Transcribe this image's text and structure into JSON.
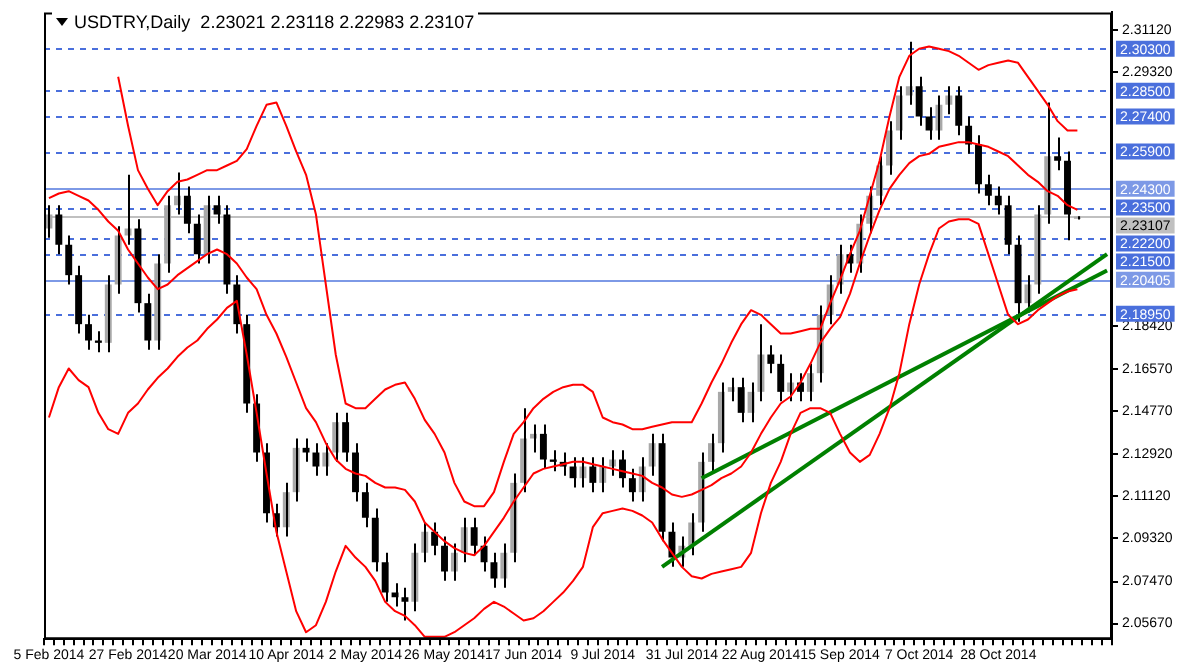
{
  "chart_data": {
    "type": "candlestick",
    "title": "USDTRY,Daily  2.23021 2.23118 2.22983 2.23107",
    "categories": [
      "5 Feb 2014",
      null,
      null,
      null,
      null,
      null,
      null,
      null,
      "27 Feb 2014",
      null,
      null,
      null,
      null,
      null,
      null,
      null,
      "20 Mar 2014",
      null,
      null,
      null,
      null,
      null,
      null,
      null,
      "10 Apr 2014",
      null,
      null,
      null,
      null,
      null,
      null,
      null,
      "2 May 2014",
      null,
      null,
      null,
      null,
      null,
      null,
      null,
      "26 May 2014",
      null,
      null,
      null,
      null,
      null,
      null,
      null,
      "17 Jun 2014",
      null,
      null,
      null,
      null,
      null,
      null,
      null,
      "9 Jul 2014",
      null,
      null,
      null,
      null,
      null,
      null,
      null,
      "31 Jul 2014",
      null,
      null,
      null,
      null,
      null,
      null,
      null,
      "22 Aug 2014",
      null,
      null,
      null,
      null,
      null,
      null,
      null,
      "15 Sep 2014",
      null,
      null,
      null,
      null,
      null,
      null,
      null,
      "7 Oct 2014",
      null,
      null,
      null,
      null,
      null,
      null,
      null,
      "28 Oct 2014",
      null,
      null,
      null,
      null,
      null,
      null,
      null,
      null,
      null,
      null,
      null
    ],
    "ohlc": [
      [
        2.226,
        2.236,
        2.222,
        2.232
      ],
      [
        2.232,
        2.236,
        2.215,
        2.219
      ],
      [
        2.219,
        2.223,
        2.202,
        2.206
      ],
      [
        2.206,
        2.21,
        2.181,
        2.185
      ],
      [
        2.185,
        2.189,
        2.174,
        2.178
      ],
      [
        2.178,
        2.182,
        2.173,
        2.177
      ],
      [
        2.177,
        2.206,
        2.173,
        2.202
      ],
      [
        2.202,
        2.227,
        2.198,
        2.223
      ],
      [
        2.223,
        2.249,
        2.219,
        2.226
      ],
      [
        2.226,
        2.23,
        2.19,
        2.194
      ],
      [
        2.194,
        2.198,
        2.174,
        2.178
      ],
      [
        2.178,
        2.215,
        2.174,
        2.211
      ],
      [
        2.211,
        2.24,
        2.207,
        2.236
      ],
      [
        2.236,
        2.25,
        2.232,
        2.24
      ],
      [
        2.24,
        2.244,
        2.224,
        2.228
      ],
      [
        2.228,
        2.232,
        2.211,
        2.215
      ],
      [
        2.215,
        2.24,
        2.211,
        2.236
      ],
      [
        2.236,
        2.24,
        2.228,
        2.232
      ],
      [
        2.232,
        2.236,
        2.198,
        2.202
      ],
      [
        2.202,
        2.206,
        2.181,
        2.185
      ],
      [
        2.185,
        2.189,
        2.147,
        2.151
      ],
      [
        2.151,
        2.155,
        2.126,
        2.13
      ],
      [
        2.13,
        2.134,
        2.1,
        2.104
      ],
      [
        2.104,
        2.108,
        2.094,
        2.098
      ],
      [
        2.098,
        2.117,
        2.094,
        2.113
      ],
      [
        2.113,
        2.136,
        2.109,
        2.132
      ],
      [
        2.132,
        2.136,
        2.126,
        2.13
      ],
      [
        2.13,
        2.134,
        2.12,
        2.124
      ],
      [
        2.124,
        2.134,
        2.12,
        2.13
      ],
      [
        2.13,
        2.147,
        2.126,
        2.143
      ],
      [
        2.143,
        2.147,
        2.126,
        2.13
      ],
      [
        2.13,
        2.134,
        2.109,
        2.113
      ],
      [
        2.113,
        2.117,
        2.098,
        2.102
      ],
      [
        2.102,
        2.106,
        2.079,
        2.083
      ],
      [
        2.083,
        2.087,
        2.066,
        2.07
      ],
      [
        2.07,
        2.074,
        2.064,
        2.068
      ],
      [
        2.068,
        2.072,
        2.058,
        2.066
      ],
      [
        2.066,
        2.091,
        2.062,
        2.087
      ],
      [
        2.087,
        2.1,
        2.083,
        2.096
      ],
      [
        2.096,
        2.1,
        2.086,
        2.09
      ],
      [
        2.09,
        2.094,
        2.075,
        2.079
      ],
      [
        2.079,
        2.091,
        2.075,
        2.087
      ],
      [
        2.087,
        2.102,
        2.083,
        2.098
      ],
      [
        2.098,
        2.102,
        2.086,
        2.09
      ],
      [
        2.09,
        2.094,
        2.079,
        2.083
      ],
      [
        2.083,
        2.087,
        2.072,
        2.076
      ],
      [
        2.076,
        2.091,
        2.072,
        2.087
      ],
      [
        2.087,
        2.121,
        2.083,
        2.117
      ],
      [
        2.117,
        2.149,
        2.113,
        2.136
      ],
      [
        2.136,
        2.142,
        2.13,
        2.138
      ],
      [
        2.138,
        2.142,
        2.123,
        2.127
      ],
      [
        2.127,
        2.131,
        2.122,
        2.126
      ],
      [
        2.126,
        2.13,
        2.12,
        2.124
      ],
      [
        2.124,
        2.128,
        2.115,
        2.119
      ],
      [
        2.119,
        2.128,
        2.115,
        2.124
      ],
      [
        2.124,
        2.128,
        2.113,
        2.117
      ],
      [
        2.117,
        2.128,
        2.113,
        2.124
      ],
      [
        2.124,
        2.131,
        2.12,
        2.127
      ],
      [
        2.127,
        2.131,
        2.115,
        2.119
      ],
      [
        2.119,
        2.123,
        2.109,
        2.113
      ],
      [
        2.113,
        2.128,
        2.109,
        2.124
      ],
      [
        2.124,
        2.138,
        2.12,
        2.134
      ],
      [
        2.134,
        2.138,
        2.092,
        2.096
      ],
      [
        2.096,
        2.1,
        2.081,
        2.085
      ],
      [
        2.085,
        2.094,
        2.081,
        2.09
      ],
      [
        2.09,
        2.104,
        2.086,
        2.1
      ],
      [
        2.1,
        2.13,
        2.096,
        2.126
      ],
      [
        2.126,
        2.138,
        2.122,
        2.134
      ],
      [
        2.134,
        2.16,
        2.13,
        2.156
      ],
      [
        2.156,
        2.162,
        2.152,
        2.158
      ],
      [
        2.158,
        2.162,
        2.143,
        2.147
      ],
      [
        2.147,
        2.16,
        2.143,
        2.156
      ],
      [
        2.156,
        2.185,
        2.152,
        2.172
      ],
      [
        2.172,
        2.176,
        2.164,
        2.168
      ],
      [
        2.168,
        2.172,
        2.152,
        2.156
      ],
      [
        2.156,
        2.164,
        2.152,
        2.16
      ],
      [
        2.16,
        2.164,
        2.152,
        2.156
      ],
      [
        2.156,
        2.168,
        2.152,
        2.164
      ],
      [
        2.164,
        2.193,
        2.16,
        2.189
      ],
      [
        2.189,
        2.206,
        2.185,
        2.202
      ],
      [
        2.202,
        2.219,
        2.198,
        2.215
      ],
      [
        2.215,
        2.219,
        2.207,
        2.211
      ],
      [
        2.211,
        2.232,
        2.207,
        2.228
      ],
      [
        2.228,
        2.244,
        2.224,
        2.24
      ],
      [
        2.24,
        2.257,
        2.236,
        2.253
      ],
      [
        2.253,
        2.272,
        2.249,
        2.268
      ],
      [
        2.268,
        2.287,
        2.264,
        2.283
      ],
      [
        2.283,
        2.306,
        2.279,
        2.287
      ],
      [
        2.287,
        2.291,
        2.27,
        2.274
      ],
      [
        2.274,
        2.278,
        2.264,
        2.268
      ],
      [
        2.268,
        2.283,
        2.264,
        2.279
      ],
      [
        2.279,
        2.287,
        2.275,
        2.283
      ],
      [
        2.283,
        2.287,
        2.266,
        2.27
      ],
      [
        2.27,
        2.274,
        2.258,
        2.262
      ],
      [
        2.262,
        2.266,
        2.241,
        2.245
      ],
      [
        2.245,
        2.249,
        2.236,
        2.24
      ],
      [
        2.24,
        2.244,
        2.232,
        2.236
      ],
      [
        2.236,
        2.24,
        2.215,
        2.219
      ],
      [
        2.219,
        2.223,
        2.186,
        2.194
      ],
      [
        2.194,
        2.206,
        2.19,
        2.202
      ],
      [
        2.202,
        2.236,
        2.198,
        2.232
      ],
      [
        2.232,
        2.28,
        2.228,
        2.257
      ],
      [
        2.257,
        2.265,
        2.251,
        2.255
      ],
      [
        2.255,
        2.259,
        2.221,
        2.232
      ],
      [
        2.2302,
        2.2312,
        2.2298,
        2.2311
      ],
      null,
      null,
      null
    ],
    "series": [
      {
        "type": "line",
        "color": "#ff0000",
        "values": [
          null,
          null,
          null,
          null,
          null,
          null,
          null,
          2.291,
          2.27,
          2.251,
          2.243,
          2.236,
          2.242,
          2.246,
          2.247,
          2.249,
          2.251,
          2.251,
          2.253,
          2.255,
          2.26,
          2.27,
          2.279,
          2.28,
          2.27,
          2.259,
          2.249,
          2.232,
          2.202,
          2.172,
          2.151,
          2.149,
          2.149,
          2.153,
          2.157,
          2.159,
          2.16,
          2.153,
          2.144,
          2.138,
          2.13,
          2.117,
          2.109,
          2.107,
          2.107,
          2.113,
          2.126,
          2.138,
          2.143,
          2.149,
          2.153,
          2.156,
          2.158,
          2.159,
          2.159,
          2.156,
          2.145,
          2.143,
          2.142,
          2.14,
          2.14,
          2.141,
          2.142,
          2.143,
          2.143,
          2.143,
          2.151,
          2.16,
          2.168,
          2.177,
          2.185,
          2.191,
          2.189,
          2.185,
          2.181,
          2.181,
          2.182,
          2.183,
          2.183,
          2.194,
          2.204,
          2.215,
          2.225,
          2.24,
          2.255,
          2.274,
          2.291,
          2.3,
          2.303,
          2.304,
          2.303,
          2.302,
          2.3,
          2.297,
          2.294,
          2.296,
          2.297,
          2.298,
          2.297,
          2.291,
          2.285,
          2.279,
          2.272,
          2.268,
          2.268,
          null,
          null,
          null
        ]
      },
      {
        "type": "line",
        "color": "#ff0000",
        "values": [
          2.239,
          2.241,
          2.242,
          2.24,
          2.238,
          2.234,
          2.229,
          2.225,
          2.217,
          2.211,
          2.205,
          2.2,
          2.202,
          2.206,
          2.209,
          2.212,
          2.215,
          2.217,
          2.215,
          2.211,
          2.205,
          2.2,
          2.189,
          2.181,
          2.171,
          2.16,
          2.149,
          2.143,
          2.134,
          2.127,
          2.123,
          2.121,
          2.12,
          2.117,
          2.115,
          2.115,
          2.114,
          2.109,
          2.1,
          2.096,
          2.092,
          2.089,
          2.087,
          2.086,
          2.09,
          2.096,
          2.102,
          2.109,
          2.115,
          2.121,
          2.123,
          2.124,
          2.125,
          2.126,
          2.126,
          2.125,
          2.124,
          2.123,
          2.122,
          2.121,
          2.12,
          2.117,
          2.115,
          2.112,
          2.111,
          2.112,
          2.114,
          2.116,
          2.119,
          2.121,
          2.124,
          2.13,
          2.138,
          2.145,
          2.151,
          2.154,
          2.16,
          2.168,
          2.177,
          2.183,
          2.188,
          2.198,
          2.211,
          2.223,
          2.234,
          2.243,
          2.249,
          2.254,
          2.257,
          2.258,
          2.261,
          2.262,
          2.263,
          2.263,
          2.262,
          2.261,
          2.259,
          2.257,
          2.253,
          2.249,
          2.246,
          2.242,
          2.24,
          2.236,
          2.234,
          null,
          null,
          null
        ]
      },
      {
        "type": "line",
        "color": "#ff0000",
        "values": [
          2.145,
          2.158,
          2.166,
          2.161,
          2.158,
          2.147,
          2.14,
          2.138,
          2.147,
          2.151,
          2.157,
          2.162,
          2.166,
          2.171,
          2.175,
          2.178,
          2.183,
          2.187,
          2.192,
          2.195,
          2.172,
          2.147,
          2.121,
          2.096,
          2.079,
          2.062,
          2.053,
          2.056,
          2.066,
          2.079,
          2.09,
          2.085,
          2.081,
          2.075,
          2.066,
          2.062,
          2.06,
          2.056,
          2.051,
          2.051,
          2.051,
          2.053,
          2.056,
          2.059,
          2.063,
          2.066,
          2.064,
          2.061,
          2.058,
          2.059,
          2.062,
          2.066,
          2.07,
          2.075,
          2.081,
          2.098,
          2.104,
          2.105,
          2.106,
          2.105,
          2.103,
          2.1,
          2.093,
          2.087,
          2.081,
          2.077,
          2.076,
          2.078,
          2.079,
          2.08,
          2.081,
          2.087,
          2.104,
          2.117,
          2.126,
          2.138,
          2.147,
          2.149,
          2.149,
          2.147,
          2.138,
          2.13,
          2.126,
          2.129,
          2.138,
          2.149,
          2.164,
          2.185,
          2.202,
          2.215,
          2.226,
          2.229,
          2.23,
          2.23,
          2.228,
          2.215,
          2.202,
          2.189,
          2.185,
          2.187,
          2.191,
          2.194,
          2.197,
          2.199,
          2.2,
          null,
          null,
          null
        ]
      },
      {
        "type": "line",
        "color": "#008000",
        "values": [
          null,
          null,
          null,
          null,
          null,
          null,
          null,
          null,
          null,
          null,
          null,
          null,
          null,
          null,
          null,
          null,
          null,
          null,
          null,
          null,
          null,
          null,
          null,
          null,
          null,
          null,
          null,
          null,
          null,
          null,
          null,
          null,
          null,
          null,
          null,
          null,
          null,
          null,
          null,
          null,
          null,
          null,
          null,
          null,
          null,
          null,
          null,
          null,
          null,
          null,
          null,
          null,
          null,
          null,
          null,
          null,
          null,
          null,
          null,
          null,
          null,
          null,
          2.081,
          null,
          null,
          null,
          null,
          null,
          null,
          null,
          null,
          null,
          null,
          null,
          null,
          null,
          null,
          null,
          null,
          null,
          null,
          null,
          null,
          null,
          null,
          null,
          null,
          null,
          null,
          null,
          null,
          null,
          null,
          null,
          null,
          null,
          null,
          null,
          null,
          null,
          null,
          null,
          null,
          null,
          null,
          null,
          null,
          2.215
        ]
      },
      {
        "type": "line",
        "color": "#008000",
        "values": [
          null,
          null,
          null,
          null,
          null,
          null,
          null,
          null,
          null,
          null,
          null,
          null,
          null,
          null,
          null,
          null,
          null,
          null,
          null,
          null,
          null,
          null,
          null,
          null,
          null,
          null,
          null,
          null,
          null,
          null,
          null,
          null,
          null,
          null,
          null,
          null,
          null,
          null,
          null,
          null,
          null,
          null,
          null,
          null,
          null,
          null,
          null,
          null,
          null,
          null,
          null,
          null,
          null,
          null,
          null,
          null,
          null,
          null,
          null,
          null,
          null,
          null,
          null,
          null,
          null,
          null,
          2.119,
          null,
          null,
          null,
          null,
          null,
          null,
          null,
          null,
          null,
          null,
          null,
          null,
          null,
          null,
          null,
          null,
          null,
          null,
          null,
          null,
          null,
          null,
          null,
          null,
          null,
          null,
          null,
          null,
          null,
          null,
          null,
          null,
          null,
          null,
          null,
          null,
          null,
          null,
          null,
          null,
          2.208
        ]
      }
    ],
    "ylim": [
      2.05,
      2.3186
    ],
    "yticks": [
      {
        "value": 2.3112,
        "label": "2.31120"
      },
      {
        "value": 2.2932,
        "label": "2.29320"
      },
      {
        "value": 2.1842,
        "label": "2.18420"
      },
      {
        "value": 2.1657,
        "label": "2.16570"
      },
      {
        "value": 2.1477,
        "label": "2.14770"
      },
      {
        "value": 2.1292,
        "label": "2.12920"
      },
      {
        "value": 2.1112,
        "label": "2.11120"
      },
      {
        "value": 2.0932,
        "label": "2.09320"
      },
      {
        "value": 2.0747,
        "label": "2.07470"
      },
      {
        "value": 2.0567,
        "label": "2.05670"
      }
    ],
    "ref_lines": [
      {
        "axis": "y",
        "value": 2.303,
        "label": "2.30300",
        "color": "#4a6fdc",
        "line_style": "dashed"
      },
      {
        "axis": "y",
        "value": 2.285,
        "label": "2.28500",
        "color": "#4a6fdc",
        "line_style": "dashed"
      },
      {
        "axis": "y",
        "value": 2.274,
        "label": "2.27400",
        "color": "#4a6fdc",
        "line_style": "dashed"
      },
      {
        "axis": "y",
        "value": 2.259,
        "label": "2.25900",
        "color": "#4a6fdc",
        "line_style": "dashed"
      },
      {
        "axis": "y",
        "value": 2.243,
        "label": "2.24300",
        "color": "#7d99e6",
        "line_style": "solid"
      },
      {
        "axis": "y",
        "value": 2.235,
        "label": "2.23500",
        "color": "#4a6fdc",
        "line_style": "dashed"
      },
      {
        "axis": "y",
        "value": 2.23107,
        "label": "2.23107",
        "color": "#c0c0c0",
        "line_style": "solid"
      },
      {
        "axis": "y",
        "value": 2.222,
        "label": "2.22200",
        "color": "#4a6fdc",
        "line_style": "dashed"
      },
      {
        "axis": "y",
        "value": 2.215,
        "label": "2.21500",
        "color": "#4a6fdc",
        "line_style": "dashed"
      },
      {
        "axis": "y",
        "value": 2.20405,
        "label": "2.20405",
        "color": "#7d99e6",
        "line_style": "solid"
      },
      {
        "axis": "y",
        "value": 2.1895,
        "label": "2.18950",
        "color": "#4a6fdc",
        "line_style": "dashed"
      }
    ],
    "grid": false,
    "legend": false,
    "marker": "none"
  }
}
